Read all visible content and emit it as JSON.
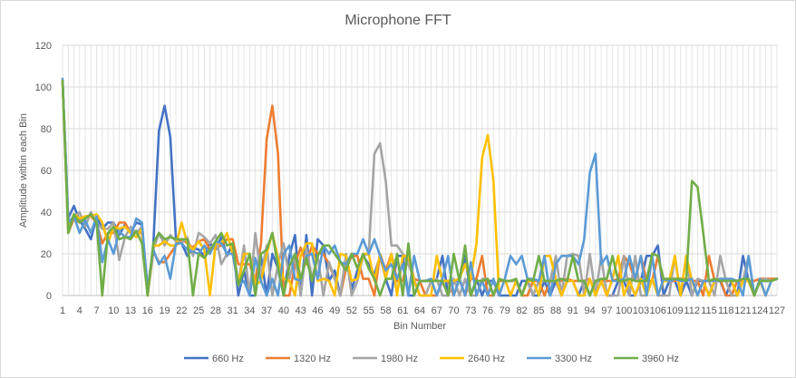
{
  "chart_data": {
    "type": "line",
    "title": "Microphone FFT",
    "xlabel": "Bin Number",
    "ylabel": "Amplitude within each Bin",
    "ylim": [
      0,
      120
    ],
    "yticks": [
      0,
      20,
      40,
      60,
      80,
      100,
      120
    ],
    "xlim": [
      1,
      127
    ],
    "xtick_labels": [
      1,
      4,
      7,
      10,
      13,
      16,
      19,
      22,
      25,
      28,
      31,
      34,
      37,
      40,
      43,
      46,
      49,
      52,
      55,
      58,
      61,
      64,
      67,
      70,
      73,
      76,
      79,
      82,
      85,
      88,
      91,
      94,
      97,
      100,
      103,
      106,
      109,
      112,
      115,
      118,
      121,
      124,
      127
    ],
    "grid": "vertical lines at each bin, horizontal at each y tick",
    "legend_position": "bottom",
    "x": [
      1,
      2,
      3,
      4,
      5,
      6,
      7,
      8,
      9,
      10,
      11,
      12,
      13,
      14,
      15,
      16,
      17,
      18,
      19,
      20,
      21,
      22,
      23,
      24,
      25,
      26,
      27,
      28,
      29,
      30,
      31,
      32,
      33,
      34,
      35,
      36,
      37,
      38,
      39,
      40,
      41,
      42,
      43,
      44,
      45,
      46,
      47,
      48,
      49,
      50,
      51,
      52,
      53,
      54,
      55,
      56,
      57,
      58,
      59,
      60,
      61,
      62,
      63,
      64,
      65,
      66,
      67,
      68,
      69,
      70,
      71,
      72,
      73,
      74,
      75,
      76,
      77,
      78,
      79,
      80,
      81,
      82,
      83,
      84,
      85,
      86,
      87,
      88,
      89,
      90,
      91,
      92,
      93,
      94,
      95,
      96,
      97,
      98,
      99,
      100,
      101,
      102,
      103,
      104,
      105,
      106,
      107,
      108,
      109,
      110,
      111,
      112,
      113,
      114,
      115,
      116,
      117,
      118,
      119,
      120,
      121,
      122,
      123,
      124,
      125,
      126,
      127
    ],
    "series": [
      {
        "name": "660 Hz",
        "color": "#4472C4",
        "values": [
          103,
          37,
          43,
          36,
          32,
          27,
          38,
          32,
          35,
          35,
          29,
          34,
          30,
          35,
          34,
          2,
          24,
          79,
          91,
          76,
          27,
          25,
          19,
          23,
          22,
          19,
          25,
          22,
          28,
          19,
          25,
          0,
          12,
          0,
          0,
          19,
          0,
          20,
          13,
          0,
          19,
          29,
          0,
          29,
          0,
          27,
          24,
          7,
          12,
          0,
          19,
          3,
          12,
          19,
          15,
          10,
          19,
          8,
          0,
          19,
          19,
          0,
          0,
          7,
          7,
          7,
          8,
          19,
          0,
          7,
          7,
          19,
          0,
          8,
          0,
          7,
          7,
          0,
          0,
          0,
          0,
          7,
          7,
          0,
          0,
          7,
          0,
          7,
          0,
          7,
          7,
          0,
          7,
          0,
          7,
          7,
          0,
          0,
          7,
          7,
          0,
          0,
          7,
          19,
          19,
          24,
          0,
          7,
          7,
          0,
          7,
          0,
          7,
          7,
          0,
          7,
          7,
          0,
          7,
          0,
          19,
          7,
          0,
          7,
          7,
          7,
          8
        ]
      },
      {
        "name": "1320 Hz",
        "color": "#ED7D31",
        "values": [
          103,
          30,
          37,
          35,
          38,
          38,
          35,
          25,
          30,
          30,
          35,
          35,
          30,
          30,
          30,
          0,
          21,
          16,
          16,
          20,
          24,
          27,
          25,
          23,
          26,
          27,
          22,
          23,
          24,
          27,
          27,
          15,
          15,
          15,
          7,
          25,
          75,
          91,
          68,
          0,
          0,
          15,
          23,
          15,
          24,
          20,
          20,
          15,
          8,
          0,
          13,
          19,
          19,
          8,
          8,
          0,
          20,
          12,
          20,
          7,
          7,
          19,
          8,
          7,
          0,
          0,
          0,
          7,
          7,
          0,
          8,
          0,
          8,
          8,
          19,
          0,
          0,
          7,
          7,
          7,
          7,
          0,
          0,
          7,
          7,
          0,
          7,
          7,
          7,
          8,
          7,
          7,
          7,
          8,
          0,
          7,
          7,
          7,
          8,
          19,
          15,
          7,
          19,
          7,
          7,
          19,
          7,
          8,
          7,
          8,
          8,
          7,
          7,
          0,
          19,
          7,
          8,
          0,
          0,
          7,
          7,
          7,
          7,
          8,
          8,
          8,
          8
        ]
      },
      {
        "name": "1980 Hz",
        "color": "#A5A5A5",
        "values": [
          103,
          36,
          37,
          40,
          33,
          40,
          35,
          32,
          32,
          35,
          17,
          28,
          33,
          30,
          33,
          0,
          22,
          30,
          24,
          29,
          26,
          25,
          28,
          19,
          30,
          28,
          25,
          29,
          15,
          20,
          20,
          5,
          24,
          0,
          30,
          9,
          24,
          0,
          15,
          25,
          8,
          19,
          0,
          23,
          8,
          19,
          0,
          16,
          8,
          0,
          20,
          0,
          7,
          19,
          20,
          68,
          73,
          55,
          24,
          24,
          20,
          15,
          8,
          0,
          0,
          7,
          8,
          0,
          0,
          8,
          0,
          8,
          0,
          0,
          8,
          8,
          0,
          8,
          7,
          7,
          7,
          0,
          8,
          0,
          7,
          7,
          7,
          19,
          0,
          19,
          20,
          19,
          0,
          20,
          0,
          19,
          0,
          0,
          0,
          19,
          0,
          19,
          0,
          0,
          8,
          0,
          0,
          0,
          19,
          0,
          19,
          0,
          8,
          7,
          7,
          0,
          19,
          7,
          0,
          0,
          7,
          19,
          0,
          7,
          8,
          7,
          8
        ]
      },
      {
        "name": "2640 Hz",
        "color": "#FFC000",
        "values": [
          103,
          32,
          39,
          37,
          38,
          38,
          39,
          35,
          25,
          33,
          32,
          33,
          30,
          28,
          32,
          0,
          24,
          24,
          26,
          24,
          24,
          35,
          25,
          22,
          26,
          22,
          0,
          25,
          25,
          30,
          20,
          5,
          20,
          20,
          5,
          7,
          20,
          30,
          18,
          8,
          7,
          0,
          19,
          25,
          25,
          7,
          8,
          7,
          0,
          20,
          19,
          7,
          8,
          20,
          20,
          7,
          20,
          8,
          20,
          0,
          19,
          19,
          7,
          0,
          0,
          0,
          19,
          7,
          7,
          7,
          8,
          15,
          8,
          25,
          66,
          77,
          55,
          0,
          8,
          0,
          7,
          0,
          7,
          7,
          0,
          19,
          19,
          8,
          0,
          7,
          7,
          0,
          0,
          8,
          0,
          7,
          0,
          8,
          19,
          0,
          7,
          0,
          8,
          0,
          8,
          0,
          7,
          7,
          19,
          0,
          19,
          7,
          0,
          7,
          0,
          7,
          8,
          8,
          7,
          0,
          7,
          7,
          0,
          7,
          0,
          7,
          8
        ]
      },
      {
        "name": "3300 Hz",
        "color": "#5B9BD5",
        "values": [
          104,
          35,
          38,
          30,
          36,
          30,
          38,
          16,
          27,
          20,
          31,
          28,
          28,
          37,
          35,
          3,
          22,
          15,
          19,
          8,
          25,
          25,
          22,
          21,
          20,
          24,
          20,
          26,
          25,
          20,
          20,
          5,
          7,
          0,
          18,
          7,
          0,
          8,
          0,
          20,
          24,
          8,
          7,
          19,
          20,
          8,
          24,
          20,
          24,
          16,
          15,
          20,
          20,
          27,
          20,
          27,
          19,
          12,
          15,
          8,
          15,
          0,
          19,
          7,
          7,
          8,
          0,
          8,
          19,
          0,
          8,
          0,
          16,
          0,
          7,
          0,
          8,
          0,
          8,
          19,
          15,
          19,
          8,
          8,
          7,
          19,
          0,
          15,
          19,
          19,
          19,
          15,
          27,
          59,
          68,
          15,
          19,
          7,
          7,
          8,
          19,
          8,
          19,
          0,
          19,
          0,
          8,
          7,
          8,
          7,
          7,
          8,
          0,
          7,
          7,
          7,
          8,
          8,
          8,
          7,
          0,
          19,
          0,
          8,
          0,
          7,
          8
        ]
      },
      {
        "name": "3960 Hz",
        "color": "#70AD47",
        "values": [
          103,
          30,
          39,
          35,
          37,
          39,
          35,
          0,
          30,
          33,
          27,
          28,
          27,
          31,
          25,
          0,
          25,
          30,
          27,
          28,
          27,
          27,
          27,
          0,
          20,
          18,
          22,
          26,
          30,
          24,
          25,
          5,
          12,
          20,
          0,
          20,
          22,
          30,
          14,
          0,
          14,
          20,
          8,
          18,
          7,
          19,
          24,
          24,
          20,
          16,
          12,
          20,
          13,
          20,
          13,
          8,
          0,
          8,
          8,
          20,
          0,
          25,
          0,
          7,
          7,
          7,
          7,
          7,
          0,
          20,
          7,
          24,
          0,
          7,
          7,
          8,
          0,
          8,
          7,
          7,
          8,
          0,
          8,
          7,
          19,
          7,
          7,
          7,
          8,
          7,
          19,
          7,
          7,
          0,
          7,
          8,
          8,
          19,
          7,
          7,
          8,
          7,
          7,
          7,
          20,
          19,
          8,
          8,
          8,
          8,
          7,
          55,
          52,
          30,
          7,
          8,
          7,
          7,
          7,
          7,
          8,
          8,
          0,
          7,
          7,
          7,
          8
        ]
      }
    ]
  }
}
